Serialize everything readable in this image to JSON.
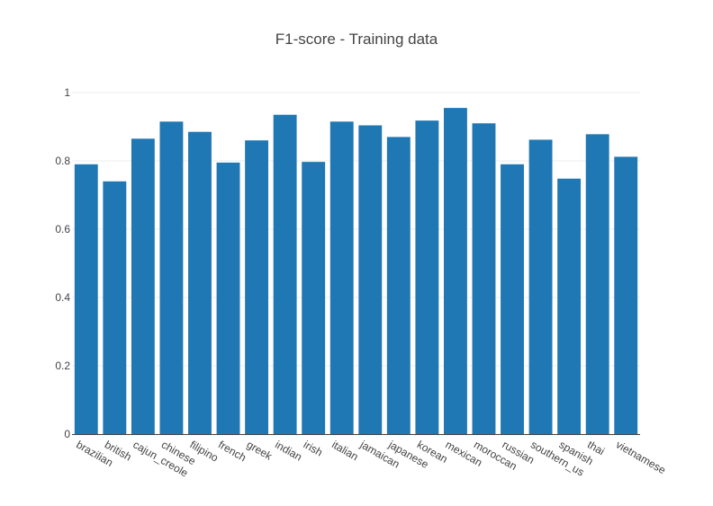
{
  "chart_data": {
    "type": "bar",
    "title": "F1-score - Training data",
    "xlabel": "",
    "ylabel": "",
    "categories": [
      "brazilian",
      "british",
      "cajun_creole",
      "chinese",
      "filipino",
      "french",
      "greek",
      "indian",
      "irish",
      "italian",
      "jamaican",
      "japanese",
      "korean",
      "mexican",
      "moroccan",
      "russian",
      "southern_us",
      "spanish",
      "thai",
      "vietnamese"
    ],
    "values": [
      0.79,
      0.74,
      0.865,
      0.915,
      0.885,
      0.795,
      0.86,
      0.935,
      0.797,
      0.915,
      0.904,
      0.87,
      0.918,
      0.955,
      0.91,
      0.79,
      0.862,
      0.748,
      0.878,
      0.812
    ],
    "ylim": [
      0,
      1
    ],
    "yticks": [
      0,
      0.2,
      0.4,
      0.6,
      0.8,
      1
    ],
    "ytick_labels": [
      "0",
      "0.2",
      "0.4",
      "0.6",
      "0.8",
      "1"
    ],
    "grid": true,
    "bar_color": "#1f77b4"
  }
}
